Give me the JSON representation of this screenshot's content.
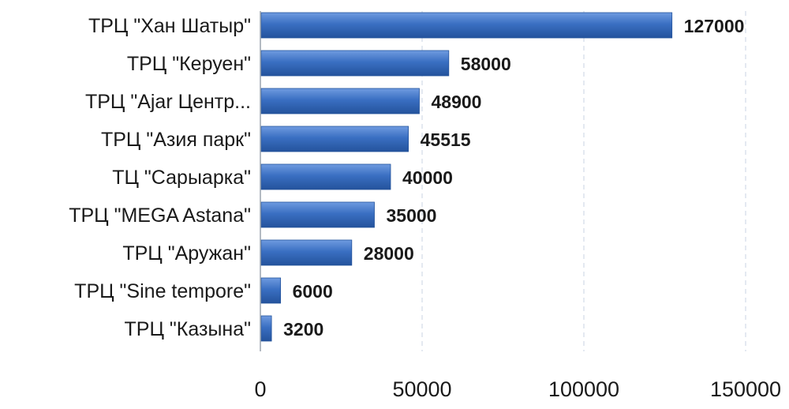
{
  "chart_data": {
    "type": "bar",
    "orientation": "horizontal",
    "title": "",
    "xlabel": "",
    "ylabel": "",
    "categories": [
      "ТРЦ \"Хан Шатыр\"",
      "ТРЦ \"Керуен\"",
      "ТРЦ \"Ajar Центр...",
      "ТРЦ \"Азия парк\"",
      "ТЦ \"Сарыарка\"",
      "ТРЦ \"MEGA Astana\"",
      "ТРЦ \"Аружан\"",
      "ТРЦ \"Sine tempore\"",
      "ТРЦ \"Казына\""
    ],
    "values": [
      127000,
      58000,
      48900,
      45515,
      40000,
      35000,
      28000,
      6000,
      3200
    ],
    "data_labels": [
      "127000",
      "58000",
      "48900",
      "45515",
      "40000",
      "35000",
      "28000",
      "6000",
      "3200"
    ],
    "xlim": [
      0,
      150000
    ],
    "x_ticks": [
      0,
      50000,
      100000,
      150000
    ],
    "x_tick_labels": [
      "0",
      "50000",
      "100000",
      "150000"
    ],
    "grid": "vertical dashed",
    "legend": "none",
    "colors": {
      "bar": "#3a6fc2",
      "bar_light": "#6f9be0",
      "bar_dark": "#24539c",
      "grid": "#c9d3e3",
      "axis": "#9aa3ad",
      "text": "#1a1a1a"
    }
  }
}
